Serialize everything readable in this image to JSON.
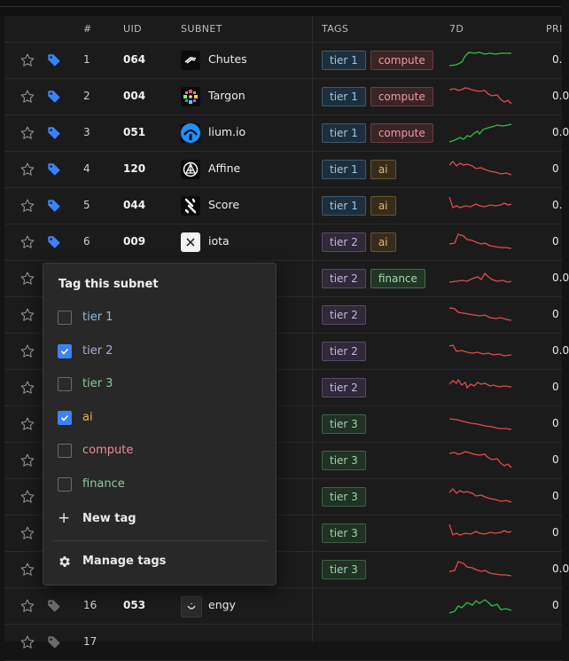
{
  "columns": {
    "num": "#",
    "uid": "UID",
    "subnet": "SUBNET",
    "tags": "TAGS",
    "spark": "7D",
    "price": "PRI"
  },
  "colors": {
    "accent": "#3b82f6",
    "up": "#2fbf4a",
    "down": "#e24b4b"
  },
  "rows": [
    {
      "num": "1",
      "uid": "064",
      "name": "Chutes",
      "logo": "chutes-logo",
      "tagged": true,
      "tags": [
        {
          "label": "tier 1",
          "kind": "t1"
        },
        {
          "label": "compute",
          "kind": "compute"
        }
      ],
      "trend": "up",
      "price": "0."
    },
    {
      "num": "2",
      "uid": "004",
      "name": "Targon",
      "logo": "targon-logo",
      "tagged": true,
      "tags": [
        {
          "label": "tier 1",
          "kind": "t1"
        },
        {
          "label": "compute",
          "kind": "compute"
        }
      ],
      "trend": "down",
      "price": "0.0"
    },
    {
      "num": "3",
      "uid": "051",
      "name": "lium.io",
      "logo": "lium-logo",
      "tagged": true,
      "tags": [
        {
          "label": "tier 1",
          "kind": "t1"
        },
        {
          "label": "compute",
          "kind": "compute"
        }
      ],
      "trend": "up",
      "price": "0.0"
    },
    {
      "num": "4",
      "uid": "120",
      "name": "Affine",
      "logo": "affine-logo",
      "tagged": true,
      "tags": [
        {
          "label": "tier 1",
          "kind": "t1"
        },
        {
          "label": "ai",
          "kind": "ai"
        }
      ],
      "trend": "down",
      "price": "0"
    },
    {
      "num": "5",
      "uid": "044",
      "name": "Score",
      "logo": "score-logo",
      "tagged": true,
      "tags": [
        {
          "label": "tier 1",
          "kind": "t1"
        },
        {
          "label": "ai",
          "kind": "ai"
        }
      ],
      "trend": "down",
      "price": "0."
    },
    {
      "num": "6",
      "uid": "009",
      "name": "iota",
      "logo": "iota-logo",
      "tagged": true,
      "tags": [
        {
          "label": "tier 2",
          "kind": "t2"
        },
        {
          "label": "ai",
          "kind": "ai"
        }
      ],
      "trend": "down",
      "price": "0"
    },
    {
      "num": "",
      "uid": "",
      "name": "",
      "logo": "",
      "tagged": false,
      "tags": [
        {
          "label": "tier 2",
          "kind": "t2"
        },
        {
          "label": "finance",
          "kind": "finance"
        }
      ],
      "trend": "down",
      "price": "0.0"
    },
    {
      "num": "",
      "uid": "",
      "name": "",
      "logo": "",
      "tagged": false,
      "tags": [
        {
          "label": "tier 2",
          "kind": "t2"
        }
      ],
      "trend": "down",
      "price": "0"
    },
    {
      "num": "",
      "uid": "",
      "name": "",
      "logo": "",
      "tagged": false,
      "tags": [
        {
          "label": "tier 2",
          "kind": "t2"
        }
      ],
      "trend": "down",
      "price": "0.0"
    },
    {
      "num": "",
      "uid": "",
      "name": "",
      "logo": "",
      "tagged": false,
      "tags": [
        {
          "label": "tier 2",
          "kind": "t2"
        }
      ],
      "trend": "down",
      "price": "0"
    },
    {
      "num": "",
      "uid": "",
      "name": "",
      "logo": "",
      "tagged": false,
      "tags": [
        {
          "label": "tier 3",
          "kind": "t3"
        }
      ],
      "trend": "down",
      "price": "0"
    },
    {
      "num": "",
      "uid": "",
      "name": "",
      "logo": "",
      "tagged": false,
      "tags": [
        {
          "label": "tier 3",
          "kind": "t3"
        }
      ],
      "trend": "down",
      "price": "0"
    },
    {
      "num": "",
      "uid": "",
      "name": "",
      "logo": "",
      "tagged": false,
      "tags": [
        {
          "label": "tier 3",
          "kind": "t3"
        }
      ],
      "trend": "down",
      "price": "0"
    },
    {
      "num": "",
      "uid": "",
      "name": "",
      "logo": "",
      "tagged": false,
      "tags": [
        {
          "label": "tier 3",
          "kind": "t3"
        }
      ],
      "trend": "down",
      "price": "0"
    },
    {
      "num": "",
      "uid": "",
      "name": "",
      "logo": "",
      "tagged": false,
      "tags": [
        {
          "label": "tier 3",
          "kind": "t3"
        }
      ],
      "trend": "down",
      "price": "0.0"
    },
    {
      "num": "16",
      "uid": "053",
      "name": "engy",
      "logo": "engy-logo",
      "tagged": false,
      "tags": [],
      "trend": "up",
      "price": "0"
    },
    {
      "num": "17",
      "uid": "",
      "name": "",
      "logo": "",
      "tagged": false,
      "tags": [],
      "trend": "",
      "price": ""
    }
  ],
  "popup": {
    "title": "Tag this subnet",
    "options": [
      {
        "label": "tier 1",
        "checked": false,
        "color": "#8fbbe0"
      },
      {
        "label": "tier 2",
        "checked": true,
        "color": "#b9a5d6"
      },
      {
        "label": "tier 3",
        "checked": false,
        "color": "#8cc79a"
      },
      {
        "label": "ai",
        "checked": true,
        "color": "#e2ae63"
      },
      {
        "label": "compute",
        "checked": false,
        "color": "#e98d94"
      },
      {
        "label": "finance",
        "checked": false,
        "color": "#8ec99a"
      }
    ],
    "new_tag": "New tag",
    "manage_tags": "Manage tags"
  }
}
